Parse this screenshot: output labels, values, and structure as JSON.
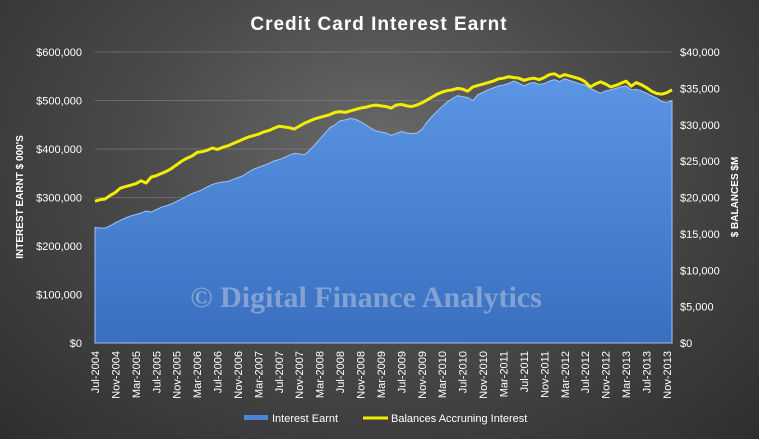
{
  "chart_data": {
    "type": "area",
    "title": "Credit Card  Interest  Earnt",
    "ylabel_left": "INTEREST EARNT $ 000'S",
    "ylabel_right": "$ BALANCES $M",
    "ylim_left": [
      0,
      600000
    ],
    "ylim_right": [
      0,
      40000
    ],
    "yticks_left": [
      "$0",
      "$100,000",
      "$200,000",
      "$300,000",
      "$400,000",
      "$500,000",
      "$600,000"
    ],
    "yticks_right": [
      "$0",
      "$5,000",
      "$10,000",
      "$15,000",
      "$20,000",
      "$25,000",
      "$30,000",
      "$35,000",
      "$40,000"
    ],
    "x_tick_labels": [
      "Jul-2004",
      "Nov-2004",
      "Mar-2005",
      "Jul-2005",
      "Nov-2005",
      "Mar-2006",
      "Jul-2006",
      "Nov-2006",
      "Mar-2007",
      "Jul-2007",
      "Nov-2007",
      "Mar-2008",
      "Jul-2008",
      "Nov-2008",
      "Mar-2009",
      "Jul-2009",
      "Nov-2009",
      "Mar-2010",
      "Jul-2010",
      "Nov-2010",
      "Mar-2011",
      "Jul-2011",
      "Nov-2011",
      "Mar-2012",
      "Jul-2012",
      "Nov-2012",
      "Mar-2013",
      "Jul-2013",
      "Nov-2013"
    ],
    "x_start": "Jul-2004",
    "x_end": "Dec-2013",
    "grid": true,
    "legend_position": "bottom",
    "watermark": "© Digital Finance Analytics",
    "series": [
      {
        "name": "Interest Earnt",
        "axis": "left",
        "style": "area",
        "color": "#4a86d8",
        "values": [
          238000,
          237000,
          237000,
          242000,
          248000,
          253000,
          258000,
          262000,
          265000,
          268000,
          272000,
          270000,
          275000,
          280000,
          283000,
          287000,
          292000,
          297000,
          303000,
          308000,
          312000,
          316000,
          322000,
          327000,
          330000,
          332000,
          333000,
          337000,
          341000,
          345000,
          352000,
          358000,
          362000,
          366000,
          370000,
          375000,
          378000,
          382000,
          387000,
          391000,
          390000,
          388000,
          397000,
          408000,
          420000,
          432000,
          444000,
          450000,
          458000,
          460000,
          463000,
          461000,
          456000,
          450000,
          443000,
          437000,
          435000,
          433000,
          428000,
          432000,
          436000,
          433000,
          432000,
          433000,
          440000,
          455000,
          467000,
          478000,
          488000,
          497000,
          504000,
          510000,
          508000,
          506000,
          500000,
          512000,
          517000,
          522000,
          526000,
          530000,
          532000,
          535000,
          540000,
          536000,
          530000,
          535000,
          537000,
          533000,
          535000,
          540000,
          543000,
          539000,
          545000,
          541000,
          538000,
          534000,
          532000,
          525000,
          520000,
          515000,
          520000,
          522000,
          525000,
          528000,
          530000,
          522000,
          523000,
          520000,
          515000,
          510000,
          505000,
          498000,
          496000,
          500000
        ]
      },
      {
        "name": "Balances Accruning Interest",
        "axis": "right",
        "style": "line",
        "color": "#f2ee00",
        "values": [
          19500,
          19700,
          19800,
          20300,
          20700,
          21300,
          21500,
          21700,
          21900,
          22300,
          22000,
          22800,
          23000,
          23300,
          23600,
          24000,
          24500,
          25000,
          25400,
          25700,
          26200,
          26300,
          26500,
          26800,
          26600,
          26900,
          27100,
          27400,
          27700,
          28000,
          28300,
          28500,
          28700,
          29000,
          29200,
          29500,
          29800,
          29700,
          29600,
          29400,
          29800,
          30200,
          30500,
          30800,
          31000,
          31200,
          31400,
          31700,
          31800,
          31700,
          31900,
          32100,
          32300,
          32400,
          32600,
          32700,
          32600,
          32500,
          32300,
          32700,
          32800,
          32600,
          32500,
          32700,
          33000,
          33400,
          33800,
          34200,
          34500,
          34700,
          34800,
          35000,
          34900,
          34600,
          35200,
          35400,
          35600,
          35800,
          36000,
          36300,
          36400,
          36600,
          36500,
          36400,
          36100,
          36300,
          36400,
          36200,
          36500,
          36900,
          37000,
          36600,
          36900,
          36700,
          36500,
          36300,
          35900,
          35200,
          35600,
          35900,
          35600,
          35200,
          35400,
          35700,
          36000,
          35300,
          35800,
          35500,
          35100,
          34600,
          34300,
          34200,
          34400,
          34800
        ]
      }
    ]
  }
}
